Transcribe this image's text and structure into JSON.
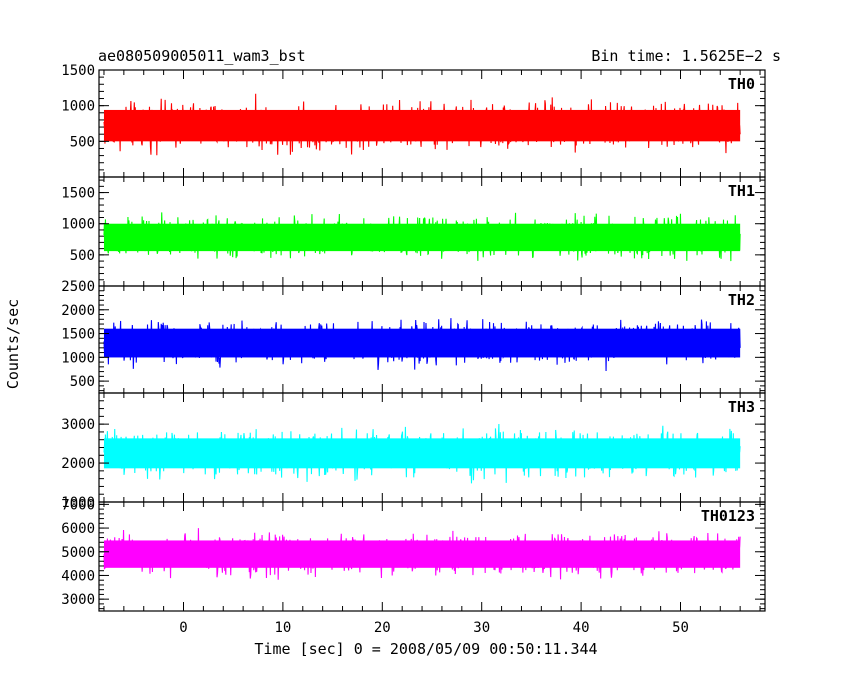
{
  "header": {
    "title": "ae080509005011_wam3_bst",
    "bin_time": "Bin time: 1.5625E−2 s"
  },
  "axes": {
    "ylabel": "Counts/sec",
    "xlabel": "Time [sec] 0 = 2008/05/09 00:50:11.344"
  },
  "chart_data": {
    "type": "line",
    "title": "ae080509005011_wam3_bst",
    "xlabel": "Time [sec] 0 = 2008/05/09 00:50:11.344",
    "ylabel": "Counts/sec",
    "xlim": [
      -8.5,
      58.5
    ],
    "x_start": -8.0,
    "x_end": 56.0,
    "x_ticks": [
      0,
      10,
      20,
      30,
      40,
      50
    ],
    "x_tick_labels": [
      "0",
      "10",
      "20",
      "30",
      "40",
      "50"
    ],
    "panels": [
      {
        "name": "TH0",
        "color": "#ff0000",
        "mean": 720,
        "fluct": 400,
        "ymin": 0,
        "ymax": 1500,
        "yticks": [
          500,
          1000,
          1500
        ],
        "ytick_labels": [
          "500",
          "1000",
          "1500"
        ]
      },
      {
        "name": "TH1",
        "color": "#00ff00",
        "mean": 780,
        "fluct": 400,
        "ymin": 0,
        "ymax": 1750,
        "yticks": [
          500,
          1000,
          1500
        ],
        "ytick_labels": [
          "500",
          "1000",
          "1500"
        ]
      },
      {
        "name": "TH2",
        "color": "#0000ff",
        "mean": 1300,
        "fluct": 550,
        "ymin": 250,
        "ymax": 2500,
        "yticks": [
          500,
          1000,
          1500,
          2000,
          2500
        ],
        "ytick_labels": [
          "500",
          "1000",
          "1500",
          "2000",
          "2500"
        ]
      },
      {
        "name": "TH3",
        "color": "#00ffff",
        "mean": 2250,
        "fluct": 700,
        "ymin": 1000,
        "ymax": 3800,
        "yticks": [
          1000,
          2000,
          3000
        ],
        "ytick_labels": [
          "1000",
          "2000",
          "3000"
        ]
      },
      {
        "name": "TH0123",
        "color": "#ff00ff",
        "mean": 4900,
        "fluct": 1050,
        "ymin": 2500,
        "ymax": 7100,
        "yticks": [
          3000,
          4000,
          5000,
          6000,
          7000
        ],
        "ytick_labels": [
          "3000",
          "4000",
          "5000",
          "6000",
          "7000"
        ]
      }
    ]
  }
}
